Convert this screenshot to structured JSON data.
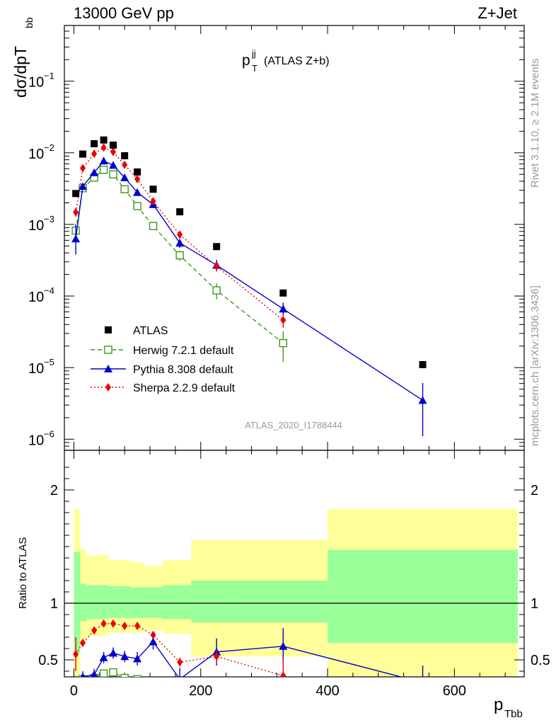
{
  "header": {
    "left": "13000 GeV pp",
    "right": "Z+Jet"
  },
  "side_labels": {
    "rivet": "Rivet 3.1.10, ≥ 2.1M events",
    "mcplots": "mcplots.cern.ch [arXiv:1306.3436]"
  },
  "chart_data": {
    "type": "scatter",
    "title": "(ATLAS Z+b)",
    "title_main": "p",
    "title_sup": "jj",
    "title_sub": "T",
    "analysis_id": "ATLAS_2020_I1788444",
    "xlabel_main": "p",
    "xlabel_sub": "Tbb",
    "ylabel_main": "dσ/dpT",
    "ylabel_sub": "bb",
    "ratio_ylabel": "Ratio to ATLAS",
    "xlim": [
      -15,
      710
    ],
    "ylim": [
      7e-07,
      0.6
    ],
    "yscale": "log",
    "ratio_ylim": [
      0.35,
      2.35
    ],
    "x_ticks": [
      "0",
      "200",
      "400",
      "600"
    ],
    "y_ticks": [
      "10",
      "10",
      "10",
      "10",
      "10",
      "10"
    ],
    "y_tick_exponents": [
      "−6",
      "−5",
      "−4",
      "−3",
      "−2",
      "−1"
    ],
    "ratio_ticks": [
      "0.5",
      "1",
      "2"
    ],
    "legend_position": "lower-left",
    "bin_edges": [
      0,
      10,
      20,
      40,
      55,
      70,
      90,
      110,
      140,
      185,
      260,
      400,
      700
    ],
    "band_inner": [
      [
        0.56,
        1.45
      ],
      [
        0.84,
        1.17
      ],
      [
        0.86,
        1.16
      ],
      [
        0.86,
        1.16
      ],
      [
        0.87,
        1.15
      ],
      [
        0.87,
        1.15
      ],
      [
        0.87,
        1.14
      ],
      [
        0.87,
        1.14
      ],
      [
        0.86,
        1.16
      ],
      [
        0.83,
        1.2
      ],
      [
        0.83,
        1.2
      ],
      [
        0.65,
        1.47
      ]
    ],
    "band_outer": [
      [
        0.35,
        1.83
      ],
      [
        0.66,
        1.48
      ],
      [
        0.71,
        1.42
      ],
      [
        0.71,
        1.43
      ],
      [
        0.74,
        1.38
      ],
      [
        0.74,
        1.38
      ],
      [
        0.74,
        1.36
      ],
      [
        0.76,
        1.33
      ],
      [
        0.73,
        1.38
      ],
      [
        0.53,
        1.56
      ],
      [
        0.53,
        1.56
      ],
      [
        0.35,
        1.83
      ]
    ],
    "series": [
      {
        "name": "ATLAS",
        "color": "#000000",
        "marker": "square",
        "x": [
          3,
          14,
          32,
          47,
          62,
          80,
          100,
          125,
          167,
          225,
          330,
          550
        ],
        "y": [
          0.0027,
          0.0096,
          0.0134,
          0.0151,
          0.0128,
          0.0091,
          0.0054,
          0.0031,
          0.0015,
          0.00049,
          0.00011,
          1.1e-05
        ]
      },
      {
        "name": "Herwig 7.2.1 default",
        "color": "#3a9a1c",
        "marker": "open-square",
        "linestyle": "dashed",
        "x": [
          3,
          14,
          32,
          47,
          62,
          80,
          100,
          125,
          167,
          225,
          330
        ],
        "y": [
          0.00082,
          0.0032,
          0.0045,
          0.0058,
          0.005,
          0.0031,
          0.0018,
          0.00095,
          0.00037,
          0.00012,
          2.2e-05
        ],
        "err_low": [
          0.0002,
          0.0003,
          0.0003,
          0.0004,
          0.0003,
          0.0002,
          0.00015,
          0.0001,
          6e-05,
          3e-05,
          1e-05
        ],
        "err_high": [
          0.0002,
          0.0003,
          0.0003,
          0.0004,
          0.0003,
          0.0002,
          0.00015,
          0.0001,
          6e-05,
          3e-05,
          1e-05
        ],
        "ratio": [
          0.3,
          0.33,
          0.34,
          0.38,
          0.39,
          0.34,
          0.33,
          0.31,
          0.25,
          0.24,
          0.2
        ]
      },
      {
        "name": "Pythia 8.308 default",
        "color": "#0000d0",
        "marker": "triangle",
        "linestyle": "solid",
        "x": [
          3,
          14,
          32,
          47,
          62,
          80,
          100,
          125,
          167,
          225,
          330,
          550
        ],
        "y": [
          0.00063,
          0.0034,
          0.0053,
          0.0077,
          0.0067,
          0.0045,
          0.0028,
          0.0019,
          0.00055,
          0.00027,
          6.6e-05,
          3.5e-06
        ],
        "err_low": [
          0.00025,
          0.0003,
          0.0004,
          0.0005,
          0.0005,
          0.0004,
          0.0003,
          0.0002,
          8e-05,
          5e-05,
          1.5e-05,
          2.4e-06
        ],
        "err_high": [
          0.00035,
          0.0003,
          0.0004,
          0.0005,
          0.0005,
          0.0004,
          0.0003,
          0.0002,
          8e-05,
          5e-05,
          1.5e-05,
          2.6e-06
        ],
        "ratio": [
          0.23,
          0.35,
          0.37,
          0.52,
          0.56,
          0.53,
          0.51,
          0.66,
          0.33,
          0.57,
          0.62,
          0.3
        ],
        "ratio_err": [
          0,
          0.05,
          0.05,
          0.05,
          0.05,
          0.05,
          0.06,
          0.07,
          0.1,
          0.12,
          0.16,
          0.15
        ]
      },
      {
        "name": "Sherpa 2.2.9 default",
        "color": "#ee0000",
        "marker": "diamond",
        "linestyle": "dotted",
        "x": [
          3,
          14,
          32,
          47,
          62,
          80,
          100,
          125,
          167,
          225,
          330
        ],
        "y": [
          0.00148,
          0.0061,
          0.0097,
          0.0118,
          0.0103,
          0.0068,
          0.0043,
          0.0021,
          0.00072,
          0.00026,
          4.6e-05
        ],
        "err_low": [
          0.0002,
          0.0004,
          0.0005,
          0.0006,
          0.0005,
          0.0004,
          0.0003,
          0.00015,
          7e-05,
          4e-05,
          1e-05
        ],
        "err_high": [
          0.0002,
          0.0004,
          0.0005,
          0.0006,
          0.0005,
          0.0004,
          0.0003,
          0.00015,
          7e-05,
          4e-05,
          1e-05
        ],
        "ratio": [
          0.55,
          0.65,
          0.76,
          0.82,
          0.82,
          0.8,
          0.8,
          0.72,
          0.48,
          0.53,
          0.36
        ],
        "ratio_err": [
          0.15,
          0.03,
          0.03,
          0.03,
          0.03,
          0.03,
          0.03,
          0.03,
          0.04,
          0.06,
          0.15
        ]
      }
    ]
  }
}
